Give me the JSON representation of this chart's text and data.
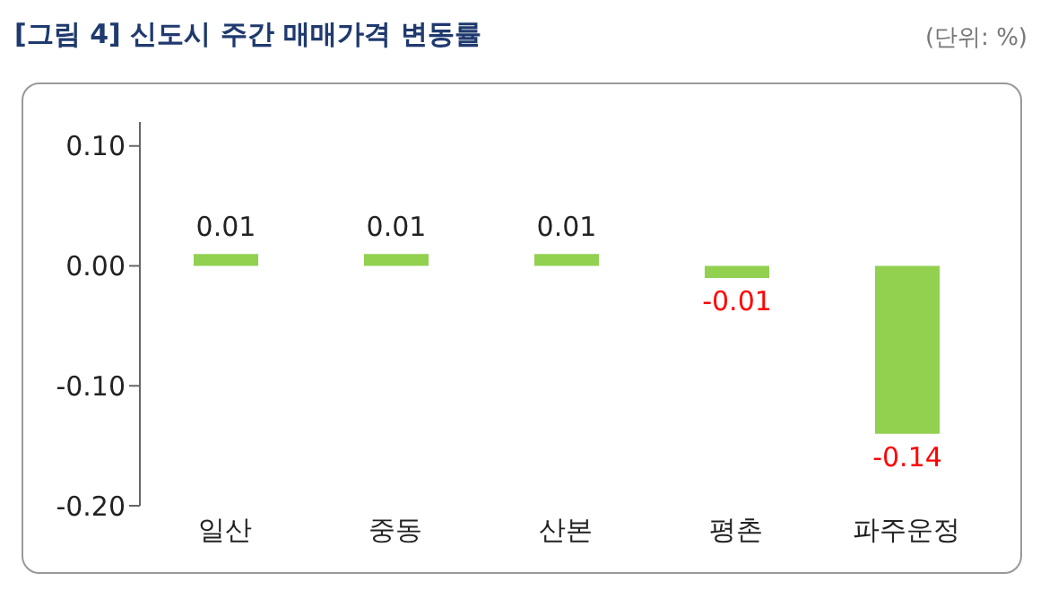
{
  "chart_data": {
    "type": "bar",
    "title": "[그림 4] 신도시  주간 매매가격 변동률",
    "annotations": [
      "(단위: %)"
    ],
    "categories": [
      "일산",
      "중동",
      "산본",
      "평촌",
      "파주운정"
    ],
    "values": [
      0.01,
      0.01,
      0.01,
      -0.01,
      -0.14
    ],
    "color": "#92d050",
    "ylim": [
      -0.2,
      0.12
    ],
    "yticks": [
      {
        "value": 0.1,
        "label": "0.10"
      },
      {
        "value": 0,
        "label": "0.00"
      },
      {
        "value": -0.1,
        "label": "-0.10"
      },
      {
        "value": -0.2,
        "label": "-0.20"
      }
    ],
    "data_labels": true,
    "grid": false
  }
}
